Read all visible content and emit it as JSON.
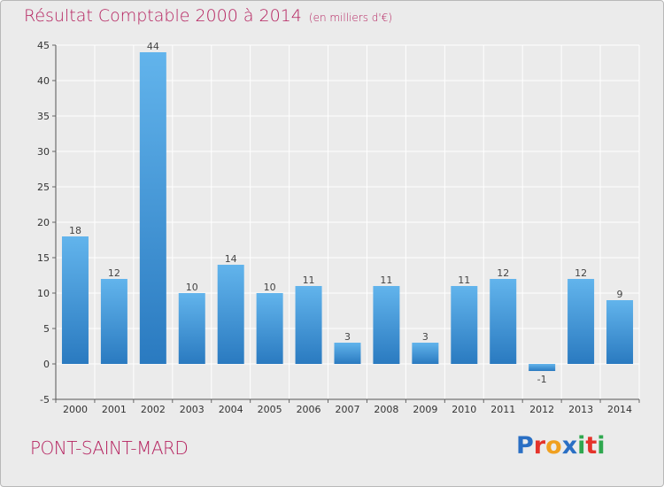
{
  "title": "Résultat Comptable 2000 à 2014",
  "unit": "(en milliers d'€)",
  "town": "PONT-SAINT-MARD",
  "logo": {
    "letters": [
      "P",
      "r",
      "o",
      "x",
      "i",
      "t",
      "i"
    ],
    "colors": [
      "#2a6fc4",
      "#e4332b",
      "#f0a020",
      "#2a6fc4",
      "#2fa84f",
      "#e4332b",
      "#2fa84f"
    ]
  },
  "colors": {
    "bar_light": "#62b4ec",
    "bar_dark": "#2a7ac0",
    "grid": "#ffffff",
    "accent": "#b5225f"
  },
  "chart_data": {
    "type": "bar",
    "title": "Résultat Comptable 2000 à 2014",
    "ylabel": "(en milliers d'€)",
    "xlabel": "",
    "categories": [
      "2000",
      "2001",
      "2002",
      "2003",
      "2004",
      "2005",
      "2006",
      "2007",
      "2008",
      "2009",
      "2010",
      "2011",
      "2012",
      "2013",
      "2014"
    ],
    "values": [
      18,
      12,
      44,
      10,
      14,
      10,
      11,
      3,
      11,
      3,
      11,
      12,
      -1,
      12,
      9
    ],
    "ylim": [
      -5,
      45
    ],
    "yticks": [
      -5,
      0,
      5,
      10,
      15,
      20,
      25,
      30,
      35,
      40,
      45
    ],
    "grid": true,
    "legend": "none"
  }
}
